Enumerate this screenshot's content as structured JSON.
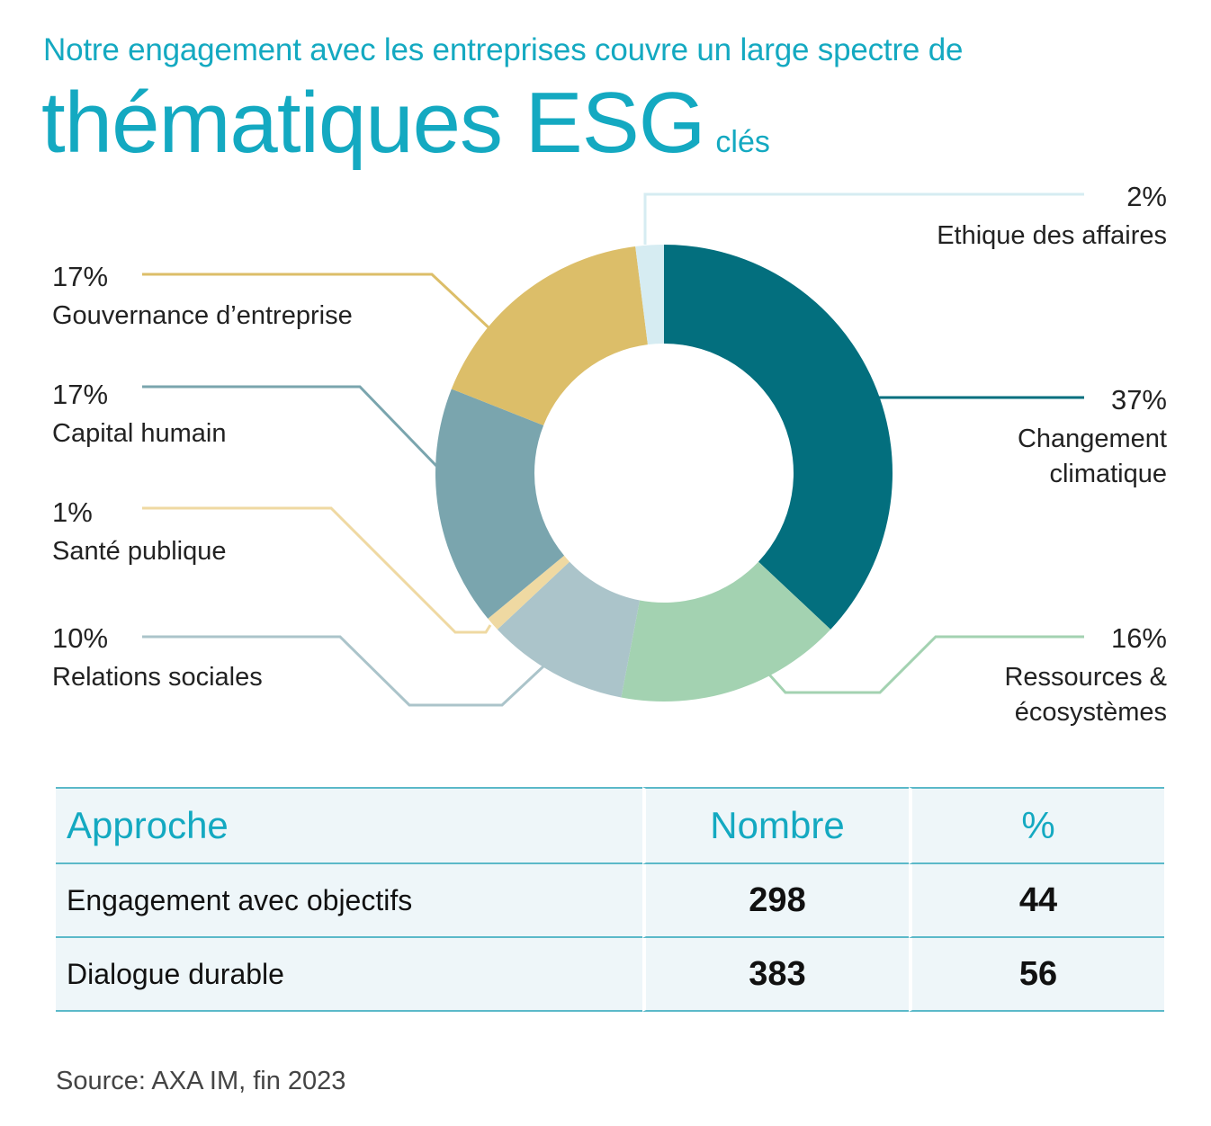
{
  "header": {
    "line1": "Notre engagement avec les entreprises couvre un large spectre de",
    "line2_big": "thématiques ESG",
    "line2_small": "clés"
  },
  "chart_data": {
    "type": "pie",
    "variant": "donut",
    "slices": [
      {
        "label": "Changement climatique",
        "label_lines": [
          "Changement",
          "climatique"
        ],
        "value": 37,
        "value_label": "37%",
        "color": "#036f7e"
      },
      {
        "label": "Ressources & écosystèmes",
        "label_lines": [
          "Ressources &",
          "écosystèmes"
        ],
        "value": 16,
        "value_label": "16%",
        "color": "#a3d2b1"
      },
      {
        "label": "Relations sociales",
        "label_lines": [
          "Relations sociales"
        ],
        "value": 10,
        "value_label": "10%",
        "color": "#abc4ca"
      },
      {
        "label": "Santé publique",
        "label_lines": [
          "Santé publique"
        ],
        "value": 1,
        "value_label": "1%",
        "color": "#efd9a2"
      },
      {
        "label": "Capital humain",
        "label_lines": [
          "Capital humain"
        ],
        "value": 17,
        "value_label": "17%",
        "color": "#7aa5ae"
      },
      {
        "label": "Gouvernance d’entreprise",
        "label_lines": [
          "Gouvernance d’entreprise"
        ],
        "value": 17,
        "value_label": "17%",
        "color": "#dcbe69"
      },
      {
        "label": "Ethique des affaires",
        "label_lines": [
          "Ethique des affaires"
        ],
        "value": 2,
        "value_label": "2%",
        "color": "#d6ecf2"
      }
    ]
  },
  "table": {
    "headers": [
      "Approche",
      "Nombre",
      "%"
    ],
    "rows": [
      [
        "Engagement avec objectifs",
        "298",
        "44"
      ],
      [
        "Dialogue durable",
        "383",
        "56"
      ]
    ]
  },
  "source": "Source: AXA IM, fin 2023"
}
